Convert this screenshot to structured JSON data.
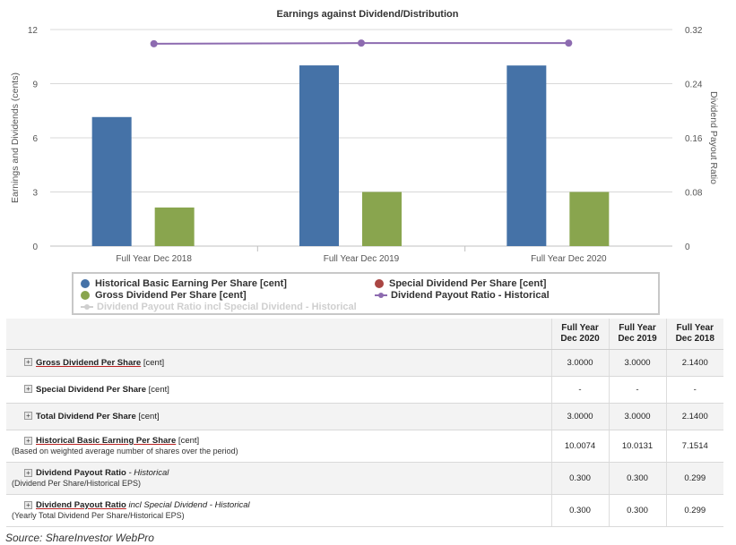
{
  "chart_data": {
    "type": "bar",
    "title": "Earnings against Dividend/Distribution",
    "categories": [
      "Full Year Dec 2018",
      "Full Year Dec 2019",
      "Full Year Dec 2020"
    ],
    "ylabel": "Earnings and Dividends (cents)",
    "y2label": "Dividend Payout Ratio",
    "ylim": [
      0,
      12
    ],
    "y2lim": [
      0,
      0.32
    ],
    "yticks": [
      "0",
      "3",
      "6",
      "9",
      "12"
    ],
    "y2ticks": [
      "0",
      "0.08",
      "0.16",
      "0.24",
      "0.32"
    ],
    "series": [
      {
        "name": "Historical Basic Earning Per Share [cent]",
        "kind": "bar",
        "axis": "left",
        "color": "#4572a7",
        "values": [
          7.1514,
          10.0131,
          10.0074
        ]
      },
      {
        "name": "Gross Dividend Per Share [cent]",
        "kind": "bar",
        "axis": "left",
        "color": "#89a54e",
        "values": [
          2.14,
          3.0,
          3.0
        ]
      },
      {
        "name": "Dividend Payout Ratio - Historical",
        "kind": "line",
        "axis": "right",
        "color": "#8d6bb0",
        "values": [
          0.299,
          0.3,
          0.3
        ]
      }
    ],
    "legend": {
      "position": "bottom",
      "items": [
        {
          "label": "Historical Basic Earning Per Share [cent]",
          "color": "#4572a7",
          "marker": "dot"
        },
        {
          "label": "Special Dividend Per Share [cent]",
          "color": "#aa4643",
          "marker": "dot"
        },
        {
          "label": "Gross Dividend Per Share [cent]",
          "color": "#89a54e",
          "marker": "dot"
        },
        {
          "label": "Dividend Payout Ratio - Historical",
          "color": "#8d6bb0",
          "marker": "line"
        },
        {
          "label": "Dividend Payout Ratio incl Special Dividend - Historical",
          "color": "#cfcfcf",
          "marker": "line",
          "hidden": true
        }
      ]
    },
    "grid": true
  },
  "table": {
    "columns": [
      {
        "line1": "Full Year",
        "line2": "Dec 2020"
      },
      {
        "line1": "Full Year",
        "line2": "Dec 2019"
      },
      {
        "line1": "Full Year",
        "line2": "Dec 2018"
      }
    ],
    "rows": [
      {
        "name": "Gross Dividend Per Share",
        "suffix": "[cent]",
        "suffix_italic": false,
        "sub": "",
        "underline": true,
        "values": [
          "3.0000",
          "3.0000",
          "2.1400"
        ]
      },
      {
        "name": "Special Dividend Per Share",
        "suffix": "[cent]",
        "suffix_italic": false,
        "sub": "",
        "underline": false,
        "values": [
          "-",
          "-",
          "-"
        ]
      },
      {
        "name": "Total Dividend Per Share",
        "suffix": "[cent]",
        "suffix_italic": false,
        "sub": "",
        "underline": false,
        "values": [
          "3.0000",
          "3.0000",
          "2.1400"
        ]
      },
      {
        "name": "Historical Basic Earning Per Share",
        "suffix": "[cent]",
        "suffix_italic": false,
        "sub": "(Based on weighted average number of shares over the period)",
        "underline": true,
        "values": [
          "10.0074",
          "10.0131",
          "7.1514"
        ]
      },
      {
        "name": "Dividend Payout Ratio",
        "suffix": "- Historical",
        "suffix_italic": true,
        "sub": "(Dividend Per Share/Historical EPS)",
        "underline": false,
        "values": [
          "0.300",
          "0.300",
          "0.299"
        ]
      },
      {
        "name": "Dividend Payout Ratio",
        "suffix": "incl Special Dividend - Historical",
        "suffix_italic": true,
        "sub": "(Yearly Total Dividend Per Share/Historical EPS)",
        "underline": true,
        "values": [
          "0.300",
          "0.300",
          "0.299"
        ]
      }
    ]
  },
  "source": "Source: ShareInvestor WebPro"
}
